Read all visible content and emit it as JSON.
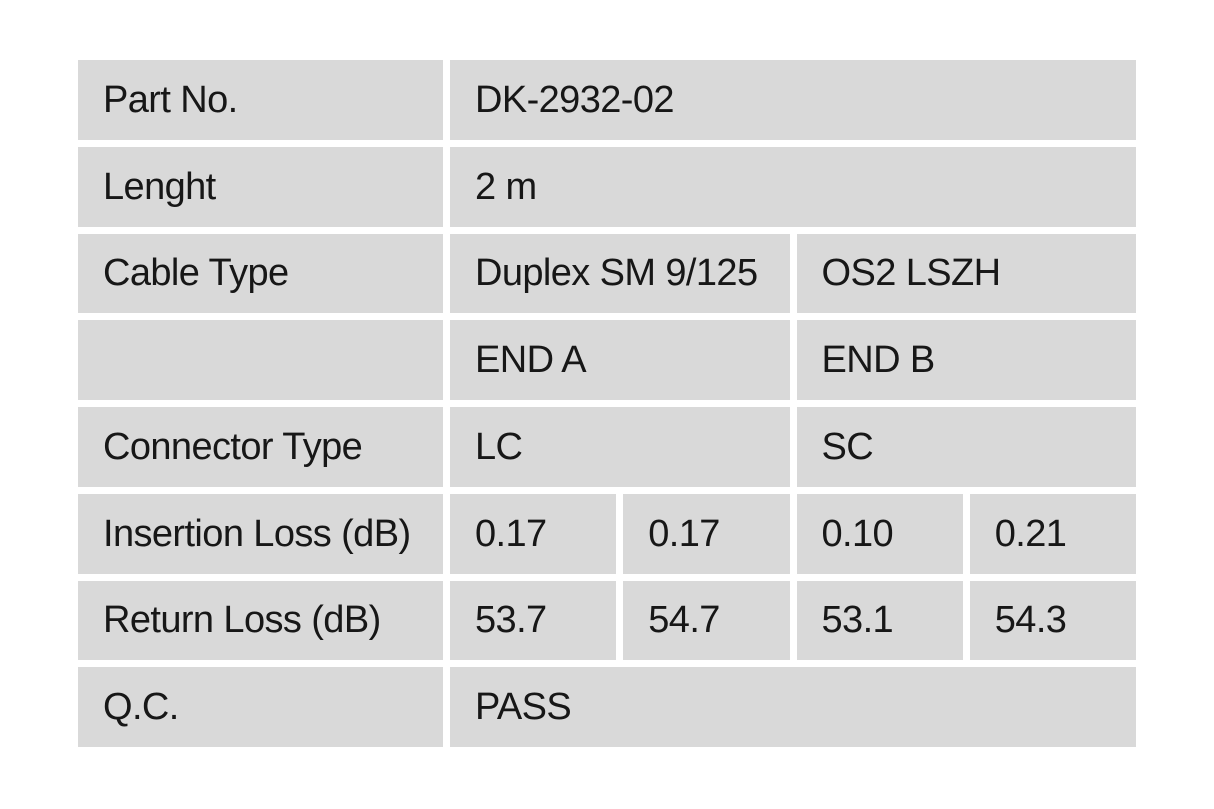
{
  "colors": {
    "cell_bg": "#d9d9d9",
    "page_bg": "#ffffff",
    "text": "#171717"
  },
  "table": {
    "part_no": {
      "label": "Part No.",
      "value": "DK-2932-02"
    },
    "length": {
      "label": "Lenght",
      "value": "2 m"
    },
    "cable_type": {
      "label": "Cable Type",
      "value_a": "Duplex SM 9/125",
      "value_b": "OS2 LSZH"
    },
    "ends": {
      "end_a": "END A",
      "end_b": "END B"
    },
    "connector_type": {
      "label": "Connector Type",
      "end_a": "LC",
      "end_b": "SC"
    },
    "insertion_loss": {
      "label": "Insertion Loss (dB)",
      "values": [
        "0.17",
        "0.17",
        "0.10",
        "0.21"
      ]
    },
    "return_loss": {
      "label": "Return Loss (dB)",
      "values": [
        "53.7",
        "54.7",
        "53.1",
        "54.3"
      ]
    },
    "qc": {
      "label": "Q.C.",
      "value": "PASS"
    }
  }
}
